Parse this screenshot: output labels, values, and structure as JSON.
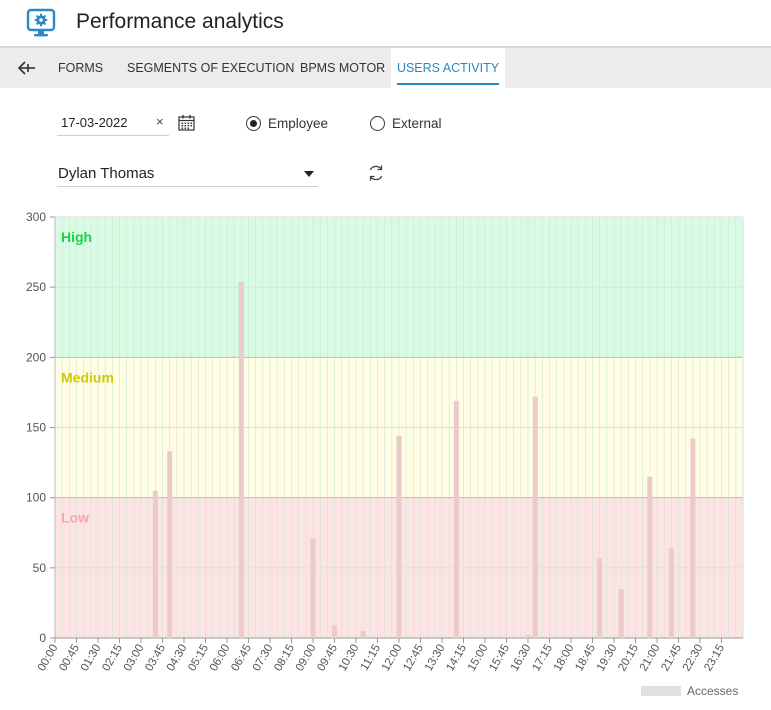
{
  "header": {
    "title": "Performance analytics",
    "icon": "monitor-gear-icon",
    "accent": "#2a87c8"
  },
  "tabs": [
    {
      "label": "FORMS"
    },
    {
      "label": "SEGMENTS OF EXECUTION"
    },
    {
      "label": "BPMS MOTOR"
    },
    {
      "label": "USERS ACTIVITY",
      "active": true
    }
  ],
  "filters": {
    "date": "17-03-2022",
    "clear": "×",
    "user_type": "Employee",
    "options": [
      {
        "label": "Employee",
        "checked": true
      },
      {
        "label": "External",
        "checked": false
      }
    ],
    "selected_user": "Dylan Thomas"
  },
  "chart_data": {
    "type": "bar",
    "ylim": [
      0,
      300
    ],
    "yticks": [
      "300",
      "250",
      "200",
      "150",
      "100",
      "50",
      "0"
    ],
    "zones": [
      {
        "name": "High",
        "from": 200,
        "to": 300,
        "fill": "#d9fbe4",
        "color": "#17d44a"
      },
      {
        "name": "Medium",
        "from": 100,
        "to": 200,
        "fill": "#fffde3",
        "color": "#d4c900"
      },
      {
        "name": "Low",
        "from": 0,
        "to": 100,
        "fill": "#fde4e4",
        "color": "#f5a9a9"
      }
    ],
    "x_labels": [
      "00:00",
      "00:45",
      "01:30",
      "02:15",
      "03:00",
      "03:45",
      "04:30",
      "05:15",
      "06:00",
      "06:45",
      "07:30",
      "08:15",
      "09:00",
      "09:45",
      "10:30",
      "11:15",
      "12:00",
      "12:45",
      "13:30",
      "14:15",
      "15:00",
      "15:45",
      "16:30",
      "17:15",
      "18:00",
      "18:45",
      "19:30",
      "20:15",
      "21:00",
      "21:45",
      "22:30",
      "23:15"
    ],
    "series": [
      {
        "name": "Accesses",
        "color": "#ebcaca",
        "points": [
          {
            "time": "03:30",
            "value": 105
          },
          {
            "time": "04:00",
            "value": 133
          },
          {
            "time": "06:30",
            "value": 254
          },
          {
            "time": "09:00",
            "value": 71
          },
          {
            "time": "09:45",
            "value": 9
          },
          {
            "time": "10:45",
            "value": 5
          },
          {
            "time": "12:00",
            "value": 144
          },
          {
            "time": "14:00",
            "value": 169
          },
          {
            "time": "16:30",
            "value": 2
          },
          {
            "time": "16:45",
            "value": 172
          },
          {
            "time": "19:00",
            "value": 57
          },
          {
            "time": "19:45",
            "value": 35
          },
          {
            "time": "20:45",
            "value": 115
          },
          {
            "time": "21:30",
            "value": 64
          },
          {
            "time": "22:15",
            "value": 142
          }
        ]
      }
    ],
    "legend": "Accesses"
  }
}
